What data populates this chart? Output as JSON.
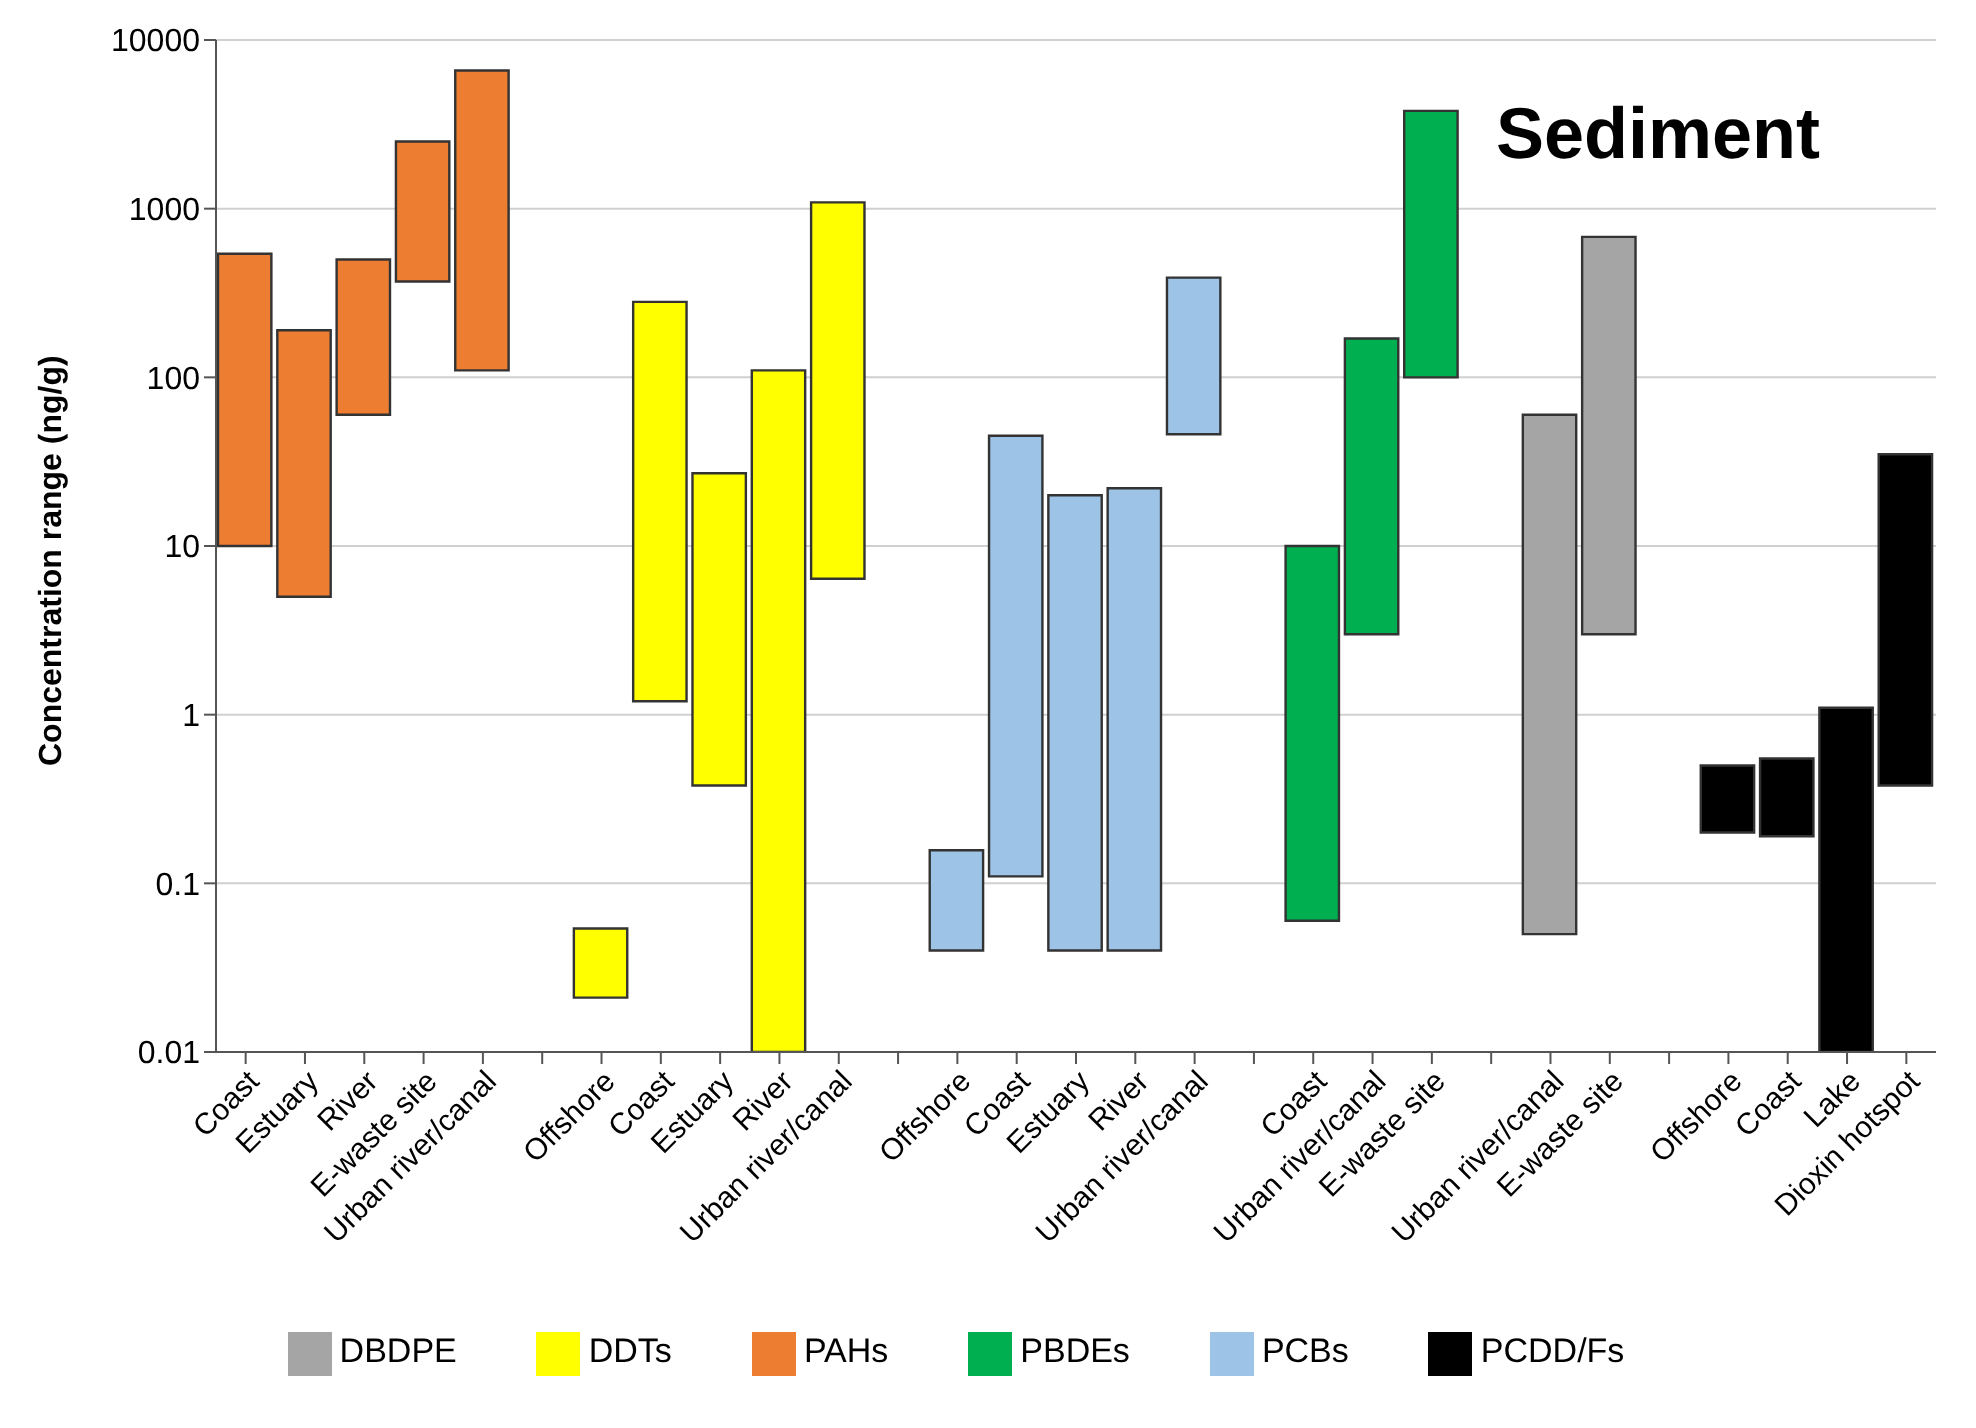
{
  "chart_data": {
    "type": "bar",
    "title": "Sediment",
    "ylabel": "Concentration range (ng/g)",
    "categories": [
      "Coast",
      "Estuary",
      "River",
      "E-waste site",
      "Urban river/canal",
      null,
      "Offshore",
      "Coast",
      "Estuary",
      "River",
      "Urban river/canal",
      null,
      "Offshore",
      "Coast",
      "Estuary",
      "River",
      "Urban river/canal",
      null,
      "Coast",
      "Urban river/canal",
      "E-waste site",
      null,
      "Urban river/canal",
      "E-waste site",
      null,
      "Offshore",
      "Coast",
      "Lake",
      "Dioxin hotspot"
    ],
    "series": [
      {
        "name": "PAHs",
        "color": "#ed7d31",
        "base": [
          10,
          5,
          60,
          370,
          110,
          null,
          null,
          null,
          null,
          null,
          null,
          null,
          null,
          null,
          null,
          null,
          null,
          null,
          null,
          null,
          null,
          null,
          null,
          null,
          null,
          null,
          null,
          null,
          null
        ],
        "values": [
          530,
          185,
          440,
          2130,
          6490,
          null,
          null,
          null,
          null,
          null,
          null,
          null,
          null,
          null,
          null,
          null,
          null,
          null,
          null,
          null,
          null,
          null,
          null,
          null,
          null,
          null,
          null,
          null,
          null
        ]
      },
      {
        "name": "DDTs",
        "color": "#ffff00",
        "base": [
          null,
          null,
          null,
          null,
          null,
          null,
          0.021,
          1.2,
          0.38,
          0.01,
          6.4,
          null,
          null,
          null,
          null,
          null,
          null,
          null,
          null,
          null,
          null,
          null,
          null,
          null,
          null,
          null,
          null,
          null,
          null
        ],
        "values": [
          null,
          null,
          null,
          null,
          null,
          null,
          0.033,
          278.8,
          26.62,
          109.99,
          1083.6,
          null,
          null,
          null,
          null,
          null,
          null,
          null,
          null,
          null,
          null,
          null,
          null,
          null,
          null,
          null,
          null,
          null,
          null
        ]
      },
      {
        "name": "PCBs",
        "color": "#9dc3e6",
        "base": [
          null,
          null,
          null,
          null,
          null,
          null,
          null,
          null,
          null,
          null,
          null,
          null,
          0.04,
          0.11,
          0.04,
          0.04,
          46,
          null,
          null,
          null,
          null,
          null,
          null,
          null,
          null,
          null,
          null,
          null,
          null
        ],
        "values": [
          null,
          null,
          null,
          null,
          null,
          null,
          null,
          null,
          null,
          null,
          null,
          null,
          0.117,
          44.89,
          19.96,
          21.96,
          344,
          null,
          null,
          null,
          null,
          null,
          null,
          null,
          null,
          null,
          null,
          null,
          null
        ]
      },
      {
        "name": "PBDEs",
        "color": "#00b050",
        "base": [
          null,
          null,
          null,
          null,
          null,
          null,
          null,
          null,
          null,
          null,
          null,
          null,
          null,
          null,
          null,
          null,
          null,
          null,
          0.06,
          3,
          100,
          null,
          null,
          null,
          null,
          null,
          null,
          null,
          null
        ],
        "values": [
          null,
          null,
          null,
          null,
          null,
          null,
          null,
          null,
          null,
          null,
          null,
          null,
          null,
          null,
          null,
          null,
          null,
          null,
          9.94,
          167,
          3700,
          null,
          null,
          null,
          null,
          null,
          null,
          null,
          null
        ]
      },
      {
        "name": "DBDPE",
        "color": "#a5a5a5",
        "base": [
          null,
          null,
          null,
          null,
          null,
          null,
          null,
          null,
          null,
          null,
          null,
          null,
          null,
          null,
          null,
          null,
          null,
          null,
          null,
          null,
          null,
          null,
          0.05,
          3,
          null,
          null,
          null,
          null,
          null
        ],
        "values": [
          null,
          null,
          null,
          null,
          null,
          null,
          null,
          null,
          null,
          null,
          null,
          null,
          null,
          null,
          null,
          null,
          null,
          null,
          null,
          null,
          null,
          null,
          59.95,
          677,
          null,
          null,
          null,
          null,
          null
        ]
      },
      {
        "name": "PCDD/Fs",
        "color": "#000000",
        "base": [
          null,
          null,
          null,
          null,
          null,
          null,
          null,
          null,
          null,
          null,
          null,
          null,
          null,
          null,
          null,
          null,
          null,
          null,
          null,
          null,
          null,
          null,
          null,
          null,
          null,
          0.2,
          0.19,
          0.01,
          0.38
        ],
        "values": [
          null,
          null,
          null,
          null,
          null,
          null,
          null,
          null,
          null,
          null,
          null,
          null,
          null,
          null,
          null,
          null,
          null,
          null,
          null,
          null,
          null,
          null,
          null,
          null,
          null,
          0.3,
          0.36,
          1.09,
          34.62
        ]
      }
    ],
    "log": "y",
    "ylim": [
      0.01,
      10000
    ],
    "yticks": [
      0.01,
      0.1,
      1,
      10,
      100,
      1000,
      10000
    ],
    "grid": "y",
    "legend": "bottom"
  }
}
